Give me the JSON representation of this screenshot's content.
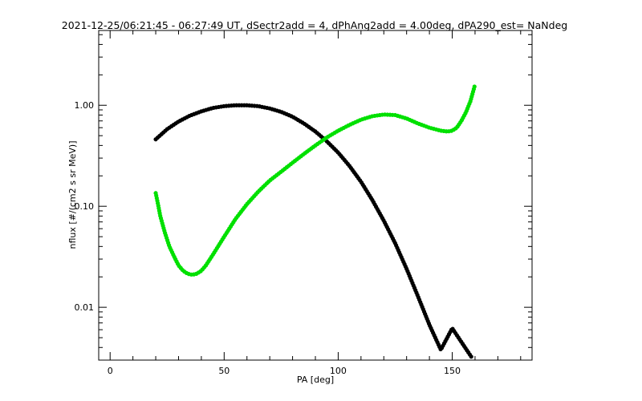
{
  "chart_data": {
    "type": "scatter",
    "title": "2021-12-25/06:21:45 - 06:27:49 UT, dSectr2add = 4, dPhAng2add = 4.00deg, dPA290_est=    NaNdeg",
    "xlabel": "PA [deg]",
    "ylabel": "nflux [#/(cm2 s sr MeV)]",
    "xlim": [
      -5,
      185
    ],
    "ylim": [
      0.003,
      5.5
    ],
    "yscale": "log",
    "x_ticks": [
      {
        "value": 0,
        "label": "0"
      },
      {
        "value": 50,
        "label": "50"
      },
      {
        "value": 100,
        "label": "100"
      },
      {
        "value": 150,
        "label": "150"
      }
    ],
    "y_ticks": [
      {
        "value": 0.01,
        "label": "0.01"
      },
      {
        "value": 0.1,
        "label": "0.10"
      },
      {
        "value": 1,
        "label": "1.00"
      }
    ],
    "grid": false,
    "series": [
      {
        "color": "#000000",
        "x": [
          20,
          25,
          30,
          35,
          40,
          45,
          50,
          55,
          60,
          65,
          70,
          75,
          80,
          85,
          90,
          95,
          100,
          105,
          110,
          115,
          120,
          125,
          130,
          135,
          140,
          145,
          150,
          155,
          158.5
        ],
        "y": [
          0.46,
          0.58,
          0.69,
          0.79,
          0.87,
          0.94,
          0.98,
          1.0,
          1.0,
          0.98,
          0.93,
          0.86,
          0.77,
          0.66,
          0.55,
          0.44,
          0.34,
          0.25,
          0.175,
          0.115,
          0.072,
          0.043,
          0.024,
          0.0128,
          0.0067,
          0.0038,
          0.0062,
          0.0042,
          0.0032
        ]
      },
      {
        "color": "#00e000",
        "x": [
          20,
          21,
          22,
          24,
          26,
          28,
          30,
          32,
          34,
          36,
          38,
          40,
          42,
          45,
          50,
          55,
          60,
          65,
          70,
          75,
          80,
          85,
          90,
          95,
          100,
          105,
          110,
          115,
          120,
          125,
          130,
          135,
          140,
          145,
          148,
          150,
          152,
          154,
          156,
          158,
          160
        ],
        "y": [
          0.135,
          0.105,
          0.08,
          0.055,
          0.04,
          0.032,
          0.026,
          0.023,
          0.0215,
          0.021,
          0.0215,
          0.023,
          0.026,
          0.033,
          0.05,
          0.075,
          0.105,
          0.14,
          0.18,
          0.22,
          0.27,
          0.33,
          0.4,
          0.48,
          0.56,
          0.64,
          0.72,
          0.78,
          0.81,
          0.8,
          0.74,
          0.66,
          0.6,
          0.56,
          0.55,
          0.56,
          0.6,
          0.7,
          0.85,
          1.1,
          1.6
        ]
      }
    ]
  }
}
